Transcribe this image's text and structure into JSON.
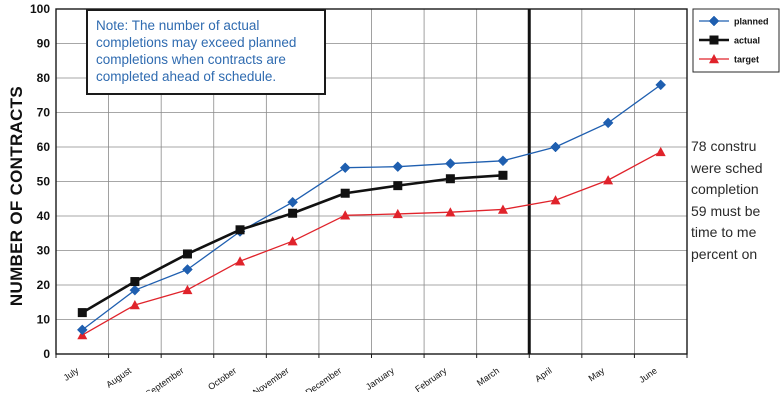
{
  "chart_data": {
    "type": "line",
    "ylabel": "NUMBER OF CONTRACTS",
    "xlabel": "",
    "ylim": [
      0,
      100
    ],
    "yticks": [
      0,
      10,
      20,
      30,
      40,
      50,
      60,
      70,
      80,
      90,
      100
    ],
    "grid": true,
    "legend_placement": "top-right outside plot",
    "categories": [
      "July",
      "August",
      "September",
      "October",
      "November",
      "December",
      "January",
      "February",
      "March",
      "April",
      "May",
      "June"
    ],
    "series": [
      {
        "name": "planned",
        "color": "#1f5fb0",
        "marker": "diamond",
        "values": [
          7,
          18.5,
          24.5,
          35.5,
          44,
          54,
          54.3,
          55.2,
          56,
          60,
          67,
          78
        ]
      },
      {
        "name": "actual",
        "color": "#111111",
        "marker": "square",
        "values": [
          12,
          21,
          29,
          36,
          40.8,
          46.6,
          48.8,
          50.8,
          51.8,
          null,
          null,
          null
        ]
      },
      {
        "name": "target",
        "color": "#e0232b",
        "marker": "triangle",
        "values": [
          5.5,
          14.2,
          18.6,
          26.9,
          32.7,
          40.2,
          40.6,
          41.1,
          41.9,
          44.6,
          50.4,
          58.6
        ]
      }
    ],
    "current_marker_after_category": "March",
    "annotation": "Note: The number of actual completions may exceed planned completions when contracts are completed ahead of schedule.",
    "side_note_lines": [
      "78 constru",
      "were sched",
      "completion",
      "59 must be",
      "time to me",
      "percent on"
    ]
  },
  "note": {
    "line1": "Note: The number of actual",
    "line2": "completions may exceed planned",
    "line3": "completions when contracts are",
    "line4": "completed ahead of schedule."
  },
  "side_note": {
    "line1": "78 constru",
    "line2": "were sched",
    "line3": "completion",
    "line4": "59 must be",
    "line5": "time to me",
    "line6": "percent on"
  }
}
